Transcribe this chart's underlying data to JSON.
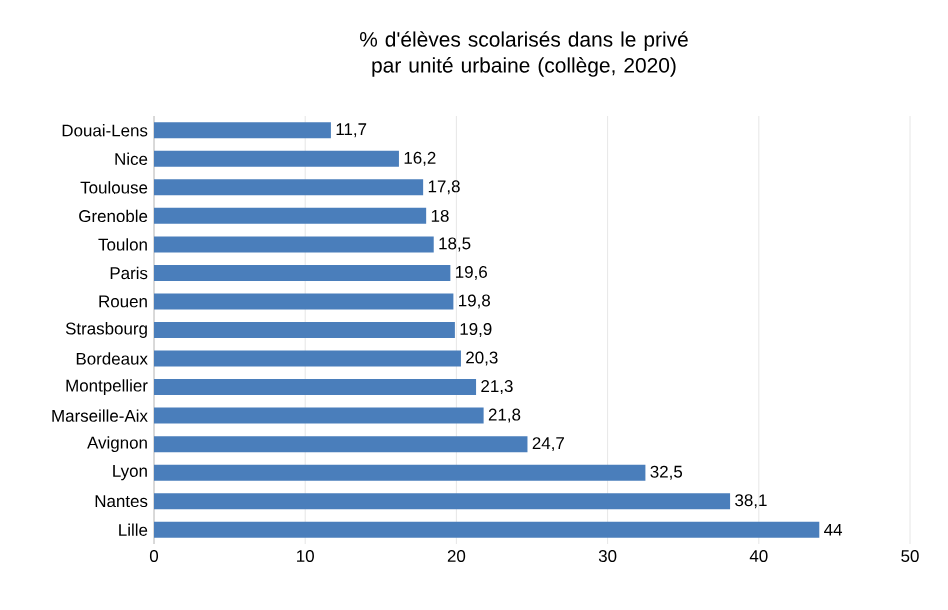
{
  "chart_data": {
    "type": "bar",
    "orientation": "horizontal",
    "title": "% d'élèves scolarisés dans le privé par unité urbaine (collège, 2020)",
    "categories": [
      "Douai-Lens",
      "Nice",
      "Toulouse",
      "Grenoble",
      "Toulon",
      "Paris",
      "Rouen",
      "Strasbourg",
      "Bordeaux",
      "Montpellier",
      "Marseille-Aix",
      "Avignon",
      "Lyon",
      "Nantes",
      "Lille"
    ],
    "values": [
      11.7,
      16.2,
      17.8,
      18,
      18.5,
      19.6,
      19.8,
      19.9,
      20.3,
      21.3,
      21.8,
      24.7,
      32.5,
      38.1,
      44
    ],
    "value_labels": [
      "11,7",
      "16,2",
      "17,8",
      "18",
      "18,5",
      "19,6",
      "19,8",
      "19,9",
      "20,3",
      "21,3",
      "21,8",
      "24,7",
      "32,5",
      "38,1",
      "44"
    ],
    "color": "#4a7ebb",
    "xlim": [
      0,
      50
    ],
    "xticks": [
      0,
      10,
      20,
      30,
      40,
      50
    ],
    "grid": "x"
  }
}
